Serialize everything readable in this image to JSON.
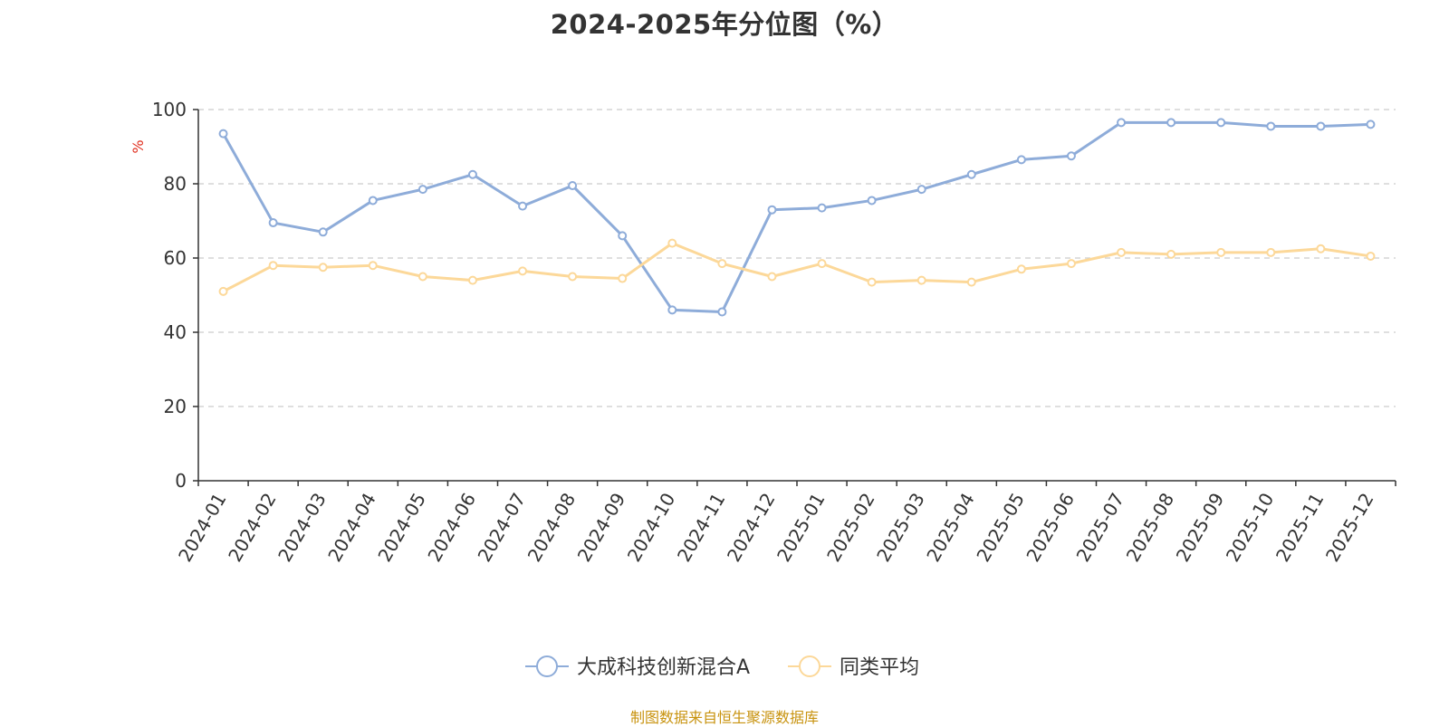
{
  "chart_data": {
    "type": "line",
    "title": "2024-2025年分位图（%）",
    "ylabel": "%",
    "xlabel": "",
    "ylim": [
      0,
      100
    ],
    "yticks": [
      0,
      20,
      40,
      60,
      80,
      100
    ],
    "grid": true,
    "legend_position": "bottom",
    "categories": [
      "2024-01",
      "2024-02",
      "2024-03",
      "2024-04",
      "2024-05",
      "2024-06",
      "2024-07",
      "2024-08",
      "2024-09",
      "2024-10",
      "2024-11",
      "2024-12",
      "2025-01",
      "2025-02",
      "2025-03",
      "2025-04",
      "2025-05",
      "2025-06",
      "2025-07",
      "2025-08",
      "2025-09",
      "2025-10",
      "2025-11",
      "2025-12"
    ],
    "series": [
      {
        "name": "大成科技创新混合A",
        "color": "#8eacd9",
        "values": [
          93.5,
          69.5,
          67,
          75.5,
          78.5,
          82.5,
          74,
          79.5,
          66,
          46,
          45.5,
          73,
          73.5,
          75.5,
          78.5,
          82.5,
          86.5,
          87.5,
          96.5,
          96.5,
          96.5,
          95.5,
          95.5,
          96
        ]
      },
      {
        "name": "同类平均",
        "color": "#fcd899",
        "values": [
          51,
          58,
          57.5,
          58,
          55,
          54,
          56.5,
          55,
          54.5,
          64,
          58.5,
          55,
          58.5,
          53.5,
          54,
          53.5,
          57,
          58.5,
          61.5,
          61,
          61.5,
          61.5,
          62.5,
          60.5
        ]
      }
    ]
  },
  "footer": {
    "source": "制图数据来自恒生聚源数据库"
  }
}
